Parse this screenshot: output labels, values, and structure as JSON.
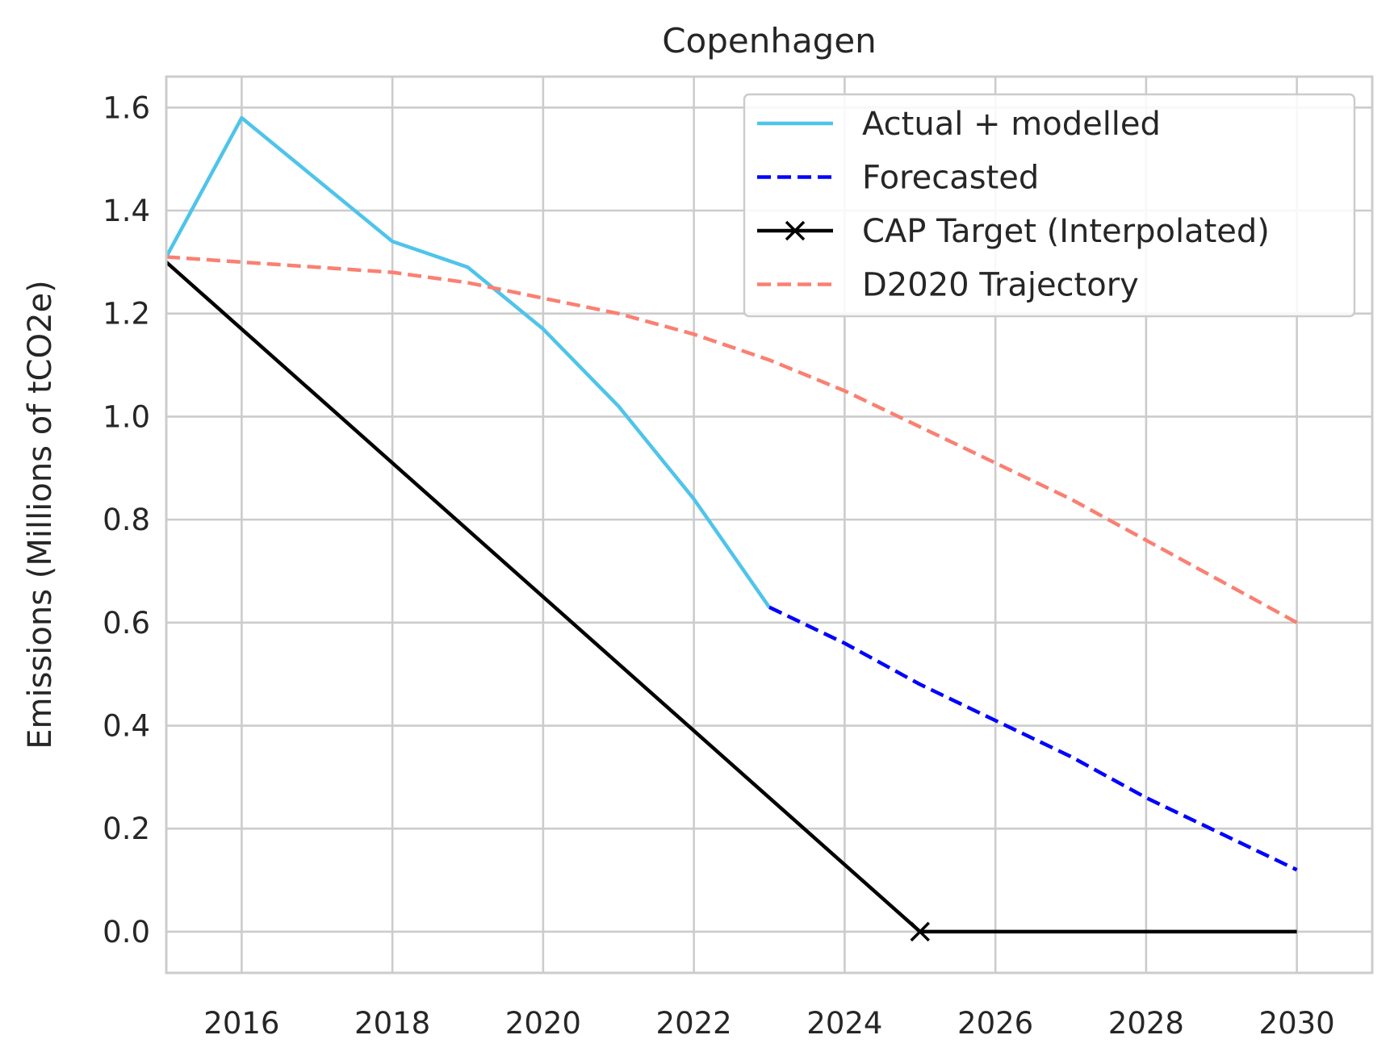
{
  "chart_data": {
    "type": "line",
    "title": "Copenhagen",
    "xlabel": "",
    "ylabel": "Emissions (Millions of tCO2e)",
    "xlim": [
      2015,
      2031
    ],
    "ylim": [
      -0.08,
      1.66
    ],
    "xticks": [
      2016,
      2018,
      2020,
      2022,
      2024,
      2026,
      2028,
      2030
    ],
    "xtick_labels": [
      "2016",
      "2018",
      "2020",
      "2022",
      "2024",
      "2026",
      "2028",
      "2030"
    ],
    "yticks": [
      0.0,
      0.2,
      0.4,
      0.6,
      0.8,
      1.0,
      1.2,
      1.4,
      1.6
    ],
    "ytick_labels": [
      "0.0",
      "0.2",
      "0.4",
      "0.6",
      "0.8",
      "1.0",
      "1.2",
      "1.4",
      "1.6"
    ],
    "grid": true,
    "legend_position": "top-right",
    "series": [
      {
        "name": "Actual + modelled",
        "color": "#4fc4ea",
        "style": "solid",
        "marker": "none",
        "x": [
          2015,
          2016,
          2017,
          2018,
          2019,
          2020,
          2021,
          2022,
          2023
        ],
        "y": [
          1.31,
          1.58,
          1.46,
          1.34,
          1.29,
          1.17,
          1.02,
          0.84,
          0.63
        ]
      },
      {
        "name": "Forecasted",
        "color": "#0000ff",
        "style": "dashed",
        "marker": "none",
        "x": [
          2023,
          2024,
          2025,
          2026,
          2027,
          2028,
          2029,
          2030
        ],
        "y": [
          0.63,
          0.56,
          0.48,
          0.41,
          0.34,
          0.26,
          0.19,
          0.12
        ]
      },
      {
        "name": "CAP Target (Interpolated)",
        "color": "#000000",
        "style": "solid",
        "marker": "x",
        "marker_x": [
          2025
        ],
        "x": [
          2015,
          2025,
          2030
        ],
        "y": [
          1.3,
          0.0,
          0.0
        ]
      },
      {
        "name": "D2020 Trajectory",
        "color": "#fa8072",
        "style": "dashed",
        "marker": "none",
        "x": [
          2015,
          2016,
          2017,
          2018,
          2019,
          2020,
          2021,
          2022,
          2023,
          2024,
          2025,
          2026,
          2027,
          2028,
          2029,
          2030
        ],
        "y": [
          1.31,
          1.3,
          1.29,
          1.28,
          1.26,
          1.23,
          1.2,
          1.16,
          1.11,
          1.05,
          0.98,
          0.91,
          0.84,
          0.76,
          0.68,
          0.6
        ]
      }
    ]
  }
}
